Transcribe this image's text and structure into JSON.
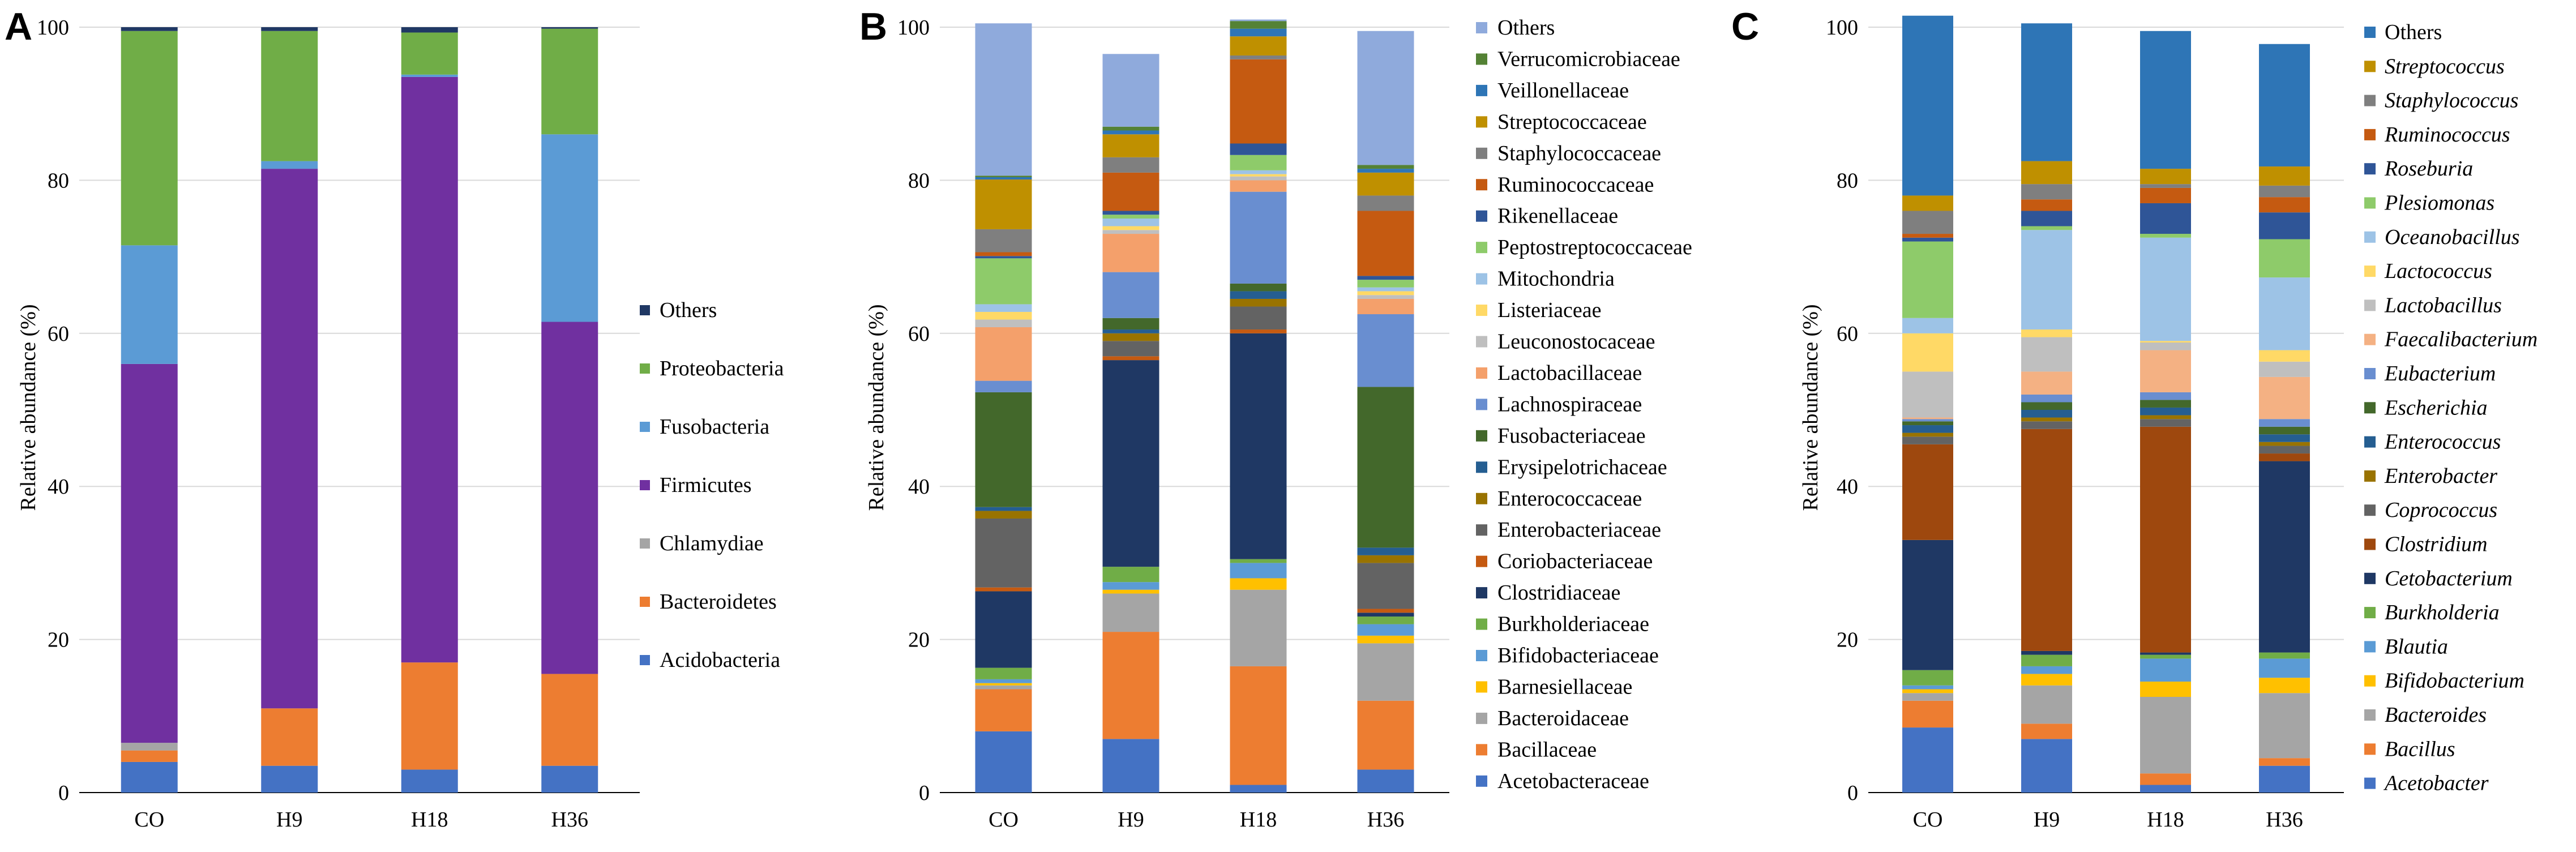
{
  "chart_data": [
    {
      "panel": "A",
      "type": "bar",
      "stacked": true,
      "ylabel": "Relative abundance (%)",
      "ylim": [
        0,
        100
      ],
      "yticks": [
        "0",
        "20",
        "40",
        "60",
        "80",
        "100"
      ],
      "grid": true,
      "legend_position": "right",
      "legend_italic": false,
      "categories": [
        "CO",
        "H9",
        "H18",
        "H36"
      ],
      "series": [
        {
          "name": "Acidobacteria",
          "color": "#4472c4",
          "values": [
            4.0,
            3.5,
            3.0,
            3.5
          ]
        },
        {
          "name": "Bacteroidetes",
          "color": "#ed7d31",
          "values": [
            1.5,
            7.5,
            14.0,
            12.0
          ]
        },
        {
          "name": "Chlamydiae",
          "color": "#a5a5a5",
          "values": [
            1.0,
            0.0,
            0.0,
            0.0
          ]
        },
        {
          "name": "Firmicutes",
          "color": "#7030a0",
          "values": [
            49.5,
            70.5,
            76.5,
            46.0
          ]
        },
        {
          "name": "Fusobacteria",
          "color": "#5b9bd5",
          "values": [
            15.5,
            1.0,
            0.3,
            24.5
          ]
        },
        {
          "name": "Proteobacteria",
          "color": "#70ad47",
          "values": [
            28.0,
            17.0,
            5.5,
            13.8
          ]
        },
        {
          "name": "Others",
          "color": "#203864",
          "values": [
            0.5,
            0.5,
            0.7,
            0.2
          ]
        }
      ]
    },
    {
      "panel": "B",
      "type": "bar",
      "stacked": true,
      "ylabel": "Relative abundance (%)",
      "ylim": [
        0,
        100
      ],
      "yticks": [
        "0",
        "20",
        "40",
        "60",
        "80",
        "100"
      ],
      "grid": true,
      "legend_position": "right",
      "legend_italic": false,
      "categories": [
        "CO",
        "H9",
        "H18",
        "H36"
      ],
      "series": [
        {
          "name": "Acetobacteraceae",
          "color": "#4472c4",
          "values": [
            8.0,
            7.0,
            1.0,
            3.0
          ]
        },
        {
          "name": "Bacillaceae",
          "color": "#ed7d31",
          "values": [
            5.5,
            14.0,
            15.5,
            9.0
          ]
        },
        {
          "name": "Bacteroidaceae",
          "color": "#a5a5a5",
          "values": [
            0.5,
            5.0,
            10.0,
            7.5
          ]
        },
        {
          "name": "Barnesiellaceae",
          "color": "#ffc000",
          "values": [
            0.3,
            0.5,
            1.5,
            1.0
          ]
        },
        {
          "name": "Bifidobacteriaceae",
          "color": "#5b9bd5",
          "values": [
            0.5,
            1.0,
            2.0,
            1.5
          ]
        },
        {
          "name": "Burkholderiaceae",
          "color": "#70ad47",
          "values": [
            1.5,
            2.0,
            0.5,
            1.0
          ]
        },
        {
          "name": "Clostridiaceae",
          "color": "#1f3864",
          "values": [
            10.0,
            27.0,
            29.5,
            0.5
          ]
        },
        {
          "name": "Coriobacteriaceae",
          "color": "#c55a11",
          "values": [
            0.5,
            0.5,
            0.5,
            0.5
          ]
        },
        {
          "name": "Enterobacteriaceae",
          "color": "#636363",
          "values": [
            9.0,
            2.0,
            3.0,
            6.0
          ]
        },
        {
          "name": "Enterococcaceae",
          "color": "#997300",
          "values": [
            1.0,
            1.0,
            1.0,
            1.0
          ]
        },
        {
          "name": "Erysipelotrichaceae",
          "color": "#255e91",
          "values": [
            0.5,
            0.5,
            1.0,
            1.0
          ]
        },
        {
          "name": "Fusobacteriaceae",
          "color": "#43682b",
          "values": [
            15.0,
            1.5,
            1.0,
            21.0
          ]
        },
        {
          "name": "Lachnospiraceae",
          "color": "#698ed0",
          "values": [
            1.5,
            6.0,
            12.0,
            9.5
          ]
        },
        {
          "name": "Lactobacillaceae",
          "color": "#f4a06b",
          "values": [
            7.0,
            5.0,
            1.5,
            2.0
          ]
        },
        {
          "name": "Leuconostocaceae",
          "color": "#bfbfbf",
          "values": [
            1.0,
            0.5,
            0.5,
            0.5
          ]
        },
        {
          "name": "Listeriaceae",
          "color": "#ffd966",
          "values": [
            1.0,
            0.5,
            0.3,
            0.5
          ]
        },
        {
          "name": "Mitochondria",
          "color": "#9dc3e6",
          "values": [
            1.0,
            1.0,
            0.5,
            0.5
          ]
        },
        {
          "name": "Peptostreptococcaceae",
          "color": "#8ecb6a",
          "values": [
            6.0,
            0.5,
            2.0,
            1.0
          ]
        },
        {
          "name": "Rikenellaceae",
          "color": "#2f5597",
          "values": [
            0.3,
            0.5,
            1.5,
            0.5
          ]
        },
        {
          "name": "Ruminococcaceae",
          "color": "#c55a11",
          "values": [
            0.5,
            5.0,
            11.0,
            8.5
          ]
        },
        {
          "name": "Staphylococcaceae",
          "color": "#7f7f7f",
          "values": [
            3.0,
            2.0,
            0.5,
            2.0
          ]
        },
        {
          "name": "Streptococcaceae",
          "color": "#bf9000",
          "values": [
            6.5,
            3.0,
            2.5,
            3.0
          ]
        },
        {
          "name": "Veillonellaceae",
          "color": "#2e75b6",
          "values": [
            0.3,
            0.5,
            1.0,
            0.5
          ]
        },
        {
          "name": "Verrucomicrobiaceae",
          "color": "#548235",
          "values": [
            0.2,
            0.5,
            1.0,
            0.5
          ]
        },
        {
          "name": "Others",
          "color": "#8faadc",
          "values": [
            19.9,
            9.5,
            0.2,
            17.5
          ]
        }
      ]
    },
    {
      "panel": "C",
      "type": "bar",
      "stacked": true,
      "ylabel": "Relative abundance (%)",
      "ylim": [
        0,
        100
      ],
      "yticks": [
        "0",
        "20",
        "40",
        "60",
        "80",
        "100"
      ],
      "grid": true,
      "legend_position": "right",
      "legend_italic": true,
      "categories": [
        "CO",
        "H9",
        "H18",
        "H36"
      ],
      "series": [
        {
          "name": "Acetobacter",
          "color": "#4472c4",
          "values": [
            8.5,
            7.0,
            1.0,
            3.5
          ]
        },
        {
          "name": "Bacillus",
          "color": "#ed7d31",
          "values": [
            3.5,
            2.0,
            1.5,
            1.0
          ]
        },
        {
          "name": "Bacteroides",
          "color": "#a5a5a5",
          "values": [
            1.0,
            5.0,
            10.0,
            8.5
          ]
        },
        {
          "name": "Bifidobacterium",
          "color": "#ffc000",
          "values": [
            0.5,
            1.5,
            2.0,
            2.0
          ]
        },
        {
          "name": "Blautia",
          "color": "#5b9bd5",
          "values": [
            0.5,
            1.0,
            3.0,
            2.5
          ]
        },
        {
          "name": "Burkholderia",
          "color": "#70ad47",
          "values": [
            2.0,
            1.5,
            0.5,
            0.8
          ]
        },
        {
          "name": "Cetobacterium",
          "color": "#1f3864",
          "values": [
            17.0,
            0.5,
            0.3,
            25.0
          ]
        },
        {
          "name": "Clostridium",
          "color": "#9e480e",
          "values": [
            12.5,
            29.0,
            29.5,
            1.0
          ]
        },
        {
          "name": "Coprococcus",
          "color": "#636363",
          "values": [
            1.0,
            1.0,
            1.0,
            1.0
          ]
        },
        {
          "name": "Enterobacter",
          "color": "#997300",
          "values": [
            0.5,
            0.5,
            0.5,
            0.5
          ]
        },
        {
          "name": "Enterococcus",
          "color": "#255e91",
          "values": [
            1.0,
            1.0,
            1.0,
            1.0
          ]
        },
        {
          "name": "Escherichia",
          "color": "#43682b",
          "values": [
            0.5,
            1.0,
            1.0,
            1.0
          ]
        },
        {
          "name": "Eubacterium",
          "color": "#698ed0",
          "values": [
            0.3,
            1.0,
            1.0,
            1.0
          ]
        },
        {
          "name": "Faecalibacterium",
          "color": "#f4b183",
          "values": [
            0.2,
            3.0,
            5.5,
            5.5
          ]
        },
        {
          "name": "Lactobacillus",
          "color": "#bfbfbf",
          "values": [
            6.0,
            4.5,
            1.0,
            2.0
          ]
        },
        {
          "name": "Lactococcus",
          "color": "#ffd966",
          "values": [
            5.0,
            1.0,
            0.2,
            1.5
          ]
        },
        {
          "name": "Oceanobacillus",
          "color": "#9dc3e6",
          "values": [
            2.0,
            13.0,
            13.5,
            9.5
          ]
        },
        {
          "name": "Plesiomonas",
          "color": "#8ecb6a",
          "values": [
            10.0,
            0.5,
            0.5,
            5.0
          ]
        },
        {
          "name": "Roseburia",
          "color": "#2f5597",
          "values": [
            0.5,
            2.0,
            4.0,
            3.5
          ]
        },
        {
          "name": "Ruminococcus",
          "color": "#c55a11",
          "values": [
            0.5,
            1.5,
            2.0,
            2.0
          ]
        },
        {
          "name": "Staphylococcus",
          "color": "#7f7f7f",
          "values": [
            3.0,
            2.0,
            0.5,
            1.5
          ]
        },
        {
          "name": "Streptococcus",
          "color": "#bf9000",
          "values": [
            2.0,
            3.0,
            2.0,
            2.5
          ]
        },
        {
          "name": "Others",
          "color": "#2e75b6",
          "values": [
            23.5,
            18.0,
            18.0,
            16.0
          ]
        }
      ]
    }
  ]
}
